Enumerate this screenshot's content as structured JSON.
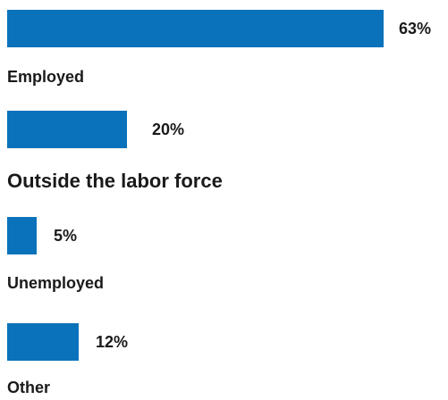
{
  "chart_data": {
    "type": "bar",
    "orientation": "horizontal",
    "categories": [
      "Employed",
      "Outside the labor force",
      "Unemployed",
      "Other"
    ],
    "values": [
      63,
      20,
      5,
      12
    ],
    "value_labels": [
      "63%",
      "20%",
      "5%",
      "12%"
    ],
    "unit": "%",
    "xlim": [
      0,
      63
    ],
    "grid": false,
    "legend": "none",
    "bar_color": "#0a72bb"
  }
}
